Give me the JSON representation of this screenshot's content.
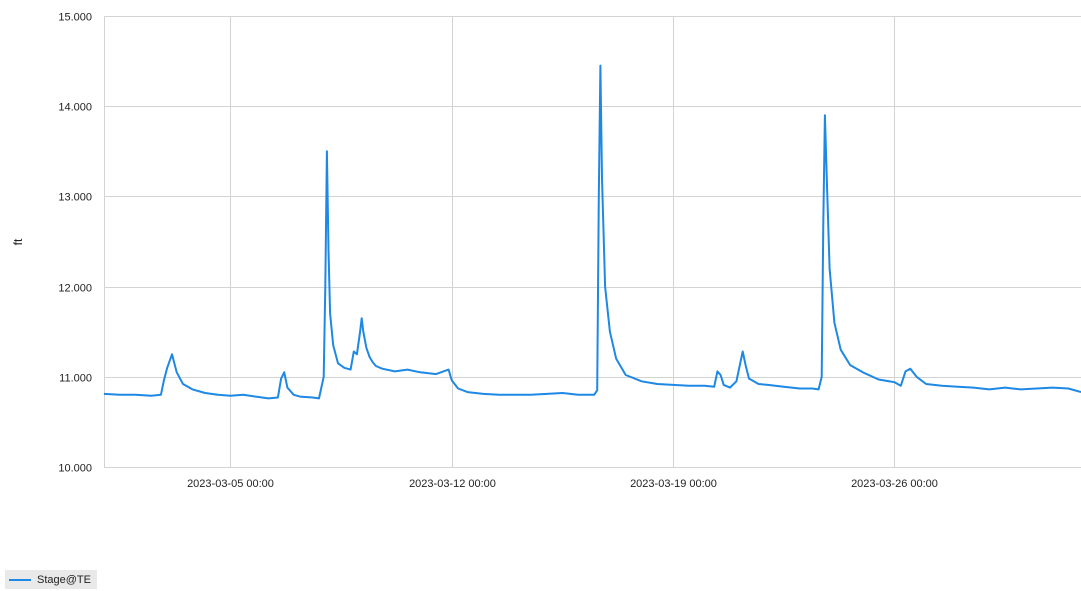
{
  "chart_data": {
    "type": "line",
    "ylabel": "ft",
    "xlabel": "",
    "ylim": [
      10.0,
      15.0
    ],
    "y_ticks": [
      "10.000",
      "11.000",
      "12.000",
      "13.000",
      "14.000",
      "15.000"
    ],
    "y_tick_values": [
      10,
      11,
      12,
      13,
      14,
      15
    ],
    "x_ticks": [
      "2023-03-05 00:00",
      "2023-03-12 00:00",
      "2023-03-19 00:00",
      "2023-03-26 00:00"
    ],
    "x_tick_days": [
      5,
      12,
      19,
      26
    ],
    "xlim_days": [
      1.0,
      31.9
    ],
    "grid": true,
    "legend_position": "bottom-left",
    "series": [
      {
        "name": "Stage@TE",
        "color": "#1e88e5",
        "x_days": [
          1.0,
          1.5,
          2.0,
          2.5,
          2.8,
          2.9,
          3.0,
          3.15,
          3.3,
          3.5,
          3.8,
          4.2,
          4.6,
          5.0,
          5.4,
          5.8,
          6.2,
          6.5,
          6.6,
          6.7,
          6.8,
          7.0,
          7.2,
          7.6,
          7.8,
          7.95,
          8.0,
          8.05,
          8.1,
          8.15,
          8.25,
          8.4,
          8.6,
          8.8,
          8.9,
          9.0,
          9.1,
          9.15,
          9.2,
          9.3,
          9.4,
          9.5,
          9.6,
          9.8,
          10.2,
          10.6,
          11.0,
          11.5,
          11.9,
          12.0,
          12.2,
          12.5,
          13.0,
          13.5,
          14.0,
          14.5,
          15.0,
          15.5,
          16.0,
          16.5,
          16.6,
          16.65,
          16.7,
          16.75,
          16.85,
          17.0,
          17.2,
          17.5,
          18.0,
          18.5,
          19.0,
          19.5,
          20.0,
          20.3,
          20.4,
          20.5,
          20.6,
          20.8,
          21.0,
          21.2,
          21.3,
          21.4,
          21.5,
          21.7,
          22.0,
          22.5,
          23.0,
          23.4,
          23.6,
          23.7,
          23.75,
          23.8,
          23.85,
          23.95,
          24.1,
          24.3,
          24.6,
          25.0,
          25.5,
          26.0,
          26.2,
          26.35,
          26.5,
          26.7,
          27.0,
          27.5,
          28.0,
          28.5,
          29.0,
          29.5,
          30.0,
          30.5,
          31.0,
          31.5,
          31.9
        ],
        "values": [
          10.81,
          10.8,
          10.8,
          10.79,
          10.8,
          10.97,
          11.1,
          11.25,
          11.05,
          10.92,
          10.86,
          10.82,
          10.8,
          10.79,
          10.8,
          10.78,
          10.76,
          10.77,
          10.98,
          11.05,
          10.88,
          10.8,
          10.78,
          10.77,
          10.76,
          11.0,
          12.0,
          13.5,
          12.4,
          11.7,
          11.35,
          11.15,
          11.1,
          11.08,
          11.28,
          11.25,
          11.5,
          11.65,
          11.5,
          11.32,
          11.22,
          11.16,
          11.12,
          11.09,
          11.06,
          11.08,
          11.05,
          11.03,
          11.08,
          10.96,
          10.87,
          10.83,
          10.81,
          10.8,
          10.8,
          10.8,
          10.81,
          10.82,
          10.8,
          10.8,
          10.85,
          13.0,
          14.45,
          13.2,
          12.0,
          11.5,
          11.2,
          11.02,
          10.95,
          10.92,
          10.91,
          10.9,
          10.9,
          10.89,
          11.06,
          11.02,
          10.91,
          10.88,
          10.95,
          11.28,
          11.12,
          10.98,
          10.96,
          10.92,
          10.91,
          10.89,
          10.87,
          10.87,
          10.86,
          11.0,
          12.7,
          13.9,
          13.3,
          12.2,
          11.6,
          11.3,
          11.13,
          11.05,
          10.97,
          10.94,
          10.9,
          11.06,
          11.09,
          11.0,
          10.92,
          10.9,
          10.89,
          10.88,
          10.86,
          10.88,
          10.86,
          10.87,
          10.88,
          10.87,
          10.83
        ]
      }
    ]
  },
  "legend": {
    "label": "Stage@TE",
    "color": "#1e88e5"
  }
}
